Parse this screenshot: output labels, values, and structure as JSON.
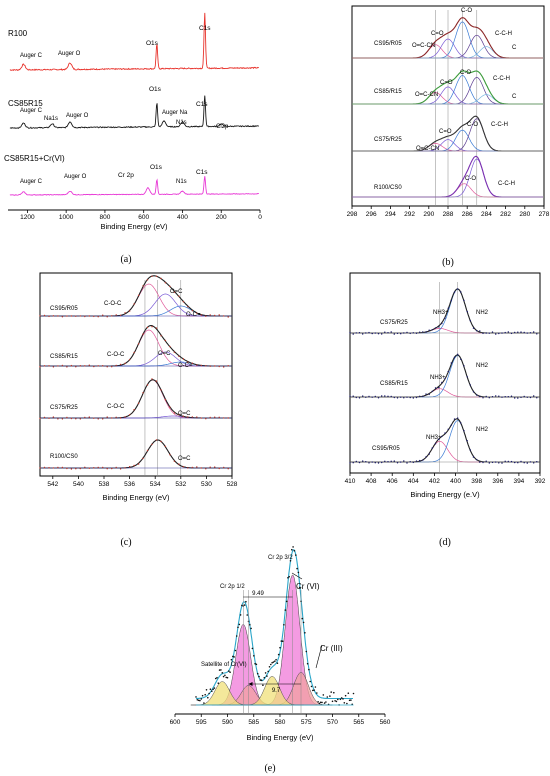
{
  "panels": {
    "a": {
      "label": "(a)",
      "xlabel": "Binding Energy  (eV)",
      "xlim": [
        1300,
        0
      ],
      "ticks": [
        1200,
        1000,
        800,
        600,
        400,
        200,
        0
      ],
      "spectra": [
        {
          "name": "R100",
          "color": "#e8342d",
          "labels": [
            "Auger C",
            "Auger O",
            "O1s",
            "C1s"
          ]
        },
        {
          "name": "CS85R15",
          "color": "#1a1a1a",
          "labels": [
            "Auger C",
            "Na1s",
            "Auger O",
            "O1s",
            "Auger Na",
            "N1s",
            "C1s",
            "Cl2p"
          ]
        },
        {
          "name": "CS85R15+Cr(VI)",
          "color": "#e83ad6",
          "labels": [
            "Auger C",
            "Auger O",
            "Cr 2p",
            "O1s",
            "N1s",
            "C1s"
          ]
        }
      ]
    },
    "b": {
      "label": "(b)",
      "xlim": [
        298,
        278
      ],
      "ticks": [
        298,
        296,
        294,
        292,
        290,
        288,
        286,
        284,
        282,
        280,
        278
      ],
      "spectra": [
        {
          "name": "CS95/R05",
          "labels": [
            "C-O",
            "C=O",
            "O=C-CN",
            "C-C-H",
            "C"
          ]
        },
        {
          "name": "CS85/R15",
          "labels": [
            "C-O",
            "C=O",
            "O=C-CN",
            "C-C-H",
            "C"
          ]
        },
        {
          "name": "CS75/R25",
          "labels": [
            "C-O",
            "C=O",
            "O=C-CN",
            "C-C-H"
          ]
        },
        {
          "name": "R100/CS0",
          "labels": [
            "C-O",
            "C-C-H"
          ]
        }
      ]
    },
    "c": {
      "label": "(c)",
      "xlabel": "Binding Energy (eV)",
      "xlim": [
        543,
        528
      ],
      "ticks": [
        542,
        540,
        538,
        536,
        534,
        532,
        530,
        528
      ],
      "spectra": [
        {
          "name": "CS95/R05",
          "labels": [
            "O=C",
            "C-O-C",
            "O-C="
          ]
        },
        {
          "name": "CS85/R15",
          "labels": [
            "C-O-C",
            "O=C",
            "O-C="
          ]
        },
        {
          "name": "CS75/R25",
          "labels": [
            "C-O-C",
            "O=C"
          ]
        },
        {
          "name": "R100/CS0",
          "labels": [
            "O=C"
          ]
        }
      ]
    },
    "d": {
      "label": "(d)",
      "xlabel": "Binding Energy (e.V)",
      "xlim": [
        410,
        392
      ],
      "ticks": [
        410,
        408,
        406,
        404,
        402,
        400,
        398,
        396,
        394,
        392
      ],
      "spectra": [
        {
          "name": "CS75/R25",
          "labels": [
            "NH3+",
            "NH2"
          ]
        },
        {
          "name": "CS85/R15",
          "labels": [
            "NH3+",
            "NH2"
          ]
        },
        {
          "name": "CS95/R05",
          "labels": [
            "NH3+",
            "NH2"
          ]
        }
      ]
    },
    "e": {
      "label": "(e)",
      "xlabel": "Binding Energy (eV)",
      "xlim": [
        600,
        560
      ],
      "ticks": [
        600,
        595,
        590,
        585,
        580,
        575,
        570,
        565,
        560
      ],
      "annotations": [
        "Cr 2p 1/2",
        "Cr 2p 3/2",
        "9.49",
        "Cr (VI)",
        "Cr (III)",
        "Satellite of Cr(VI)",
        "9.7"
      ]
    }
  },
  "chart_data": [
    {
      "type": "line",
      "panel": "a",
      "xlabel": "Binding Energy  (eV)",
      "xlim": [
        1300,
        0
      ],
      "series": [
        {
          "name": "R100",
          "peaks": [
            {
              "x": 1220,
              "h": 0.1
            },
            {
              "x": 980,
              "h": 0.12
            },
            {
              "x": 532,
              "h": 0.45
            },
            {
              "x": 285,
              "h": 1.0
            }
          ]
        },
        {
          "name": "CS85R15",
          "peaks": [
            {
              "x": 1220,
              "h": 0.1
            },
            {
              "x": 1072,
              "h": 0.08
            },
            {
              "x": 980,
              "h": 0.12
            },
            {
              "x": 532,
              "h": 0.5
            },
            {
              "x": 495,
              "h": 0.12
            },
            {
              "x": 400,
              "h": 0.1
            },
            {
              "x": 285,
              "h": 0.65
            },
            {
              "x": 200,
              "h": 0.05
            }
          ]
        },
        {
          "name": "CS85R15+Cr(VI)",
          "peaks": [
            {
              "x": 1220,
              "h": 0.1
            },
            {
              "x": 980,
              "h": 0.12
            },
            {
              "x": 578,
              "h": 0.22
            },
            {
              "x": 532,
              "h": 0.5
            },
            {
              "x": 400,
              "h": 0.1
            },
            {
              "x": 285,
              "h": 0.6
            }
          ]
        }
      ]
    },
    {
      "type": "line",
      "panel": "b",
      "xlim": [
        298,
        278
      ],
      "series": [
        {
          "name": "CS95/R05",
          "components": [
            {
              "x": 289.3,
              "h": 0.35
            },
            {
              "x": 288.0,
              "h": 0.5
            },
            {
              "x": 286.5,
              "h": 0.95
            },
            {
              "x": 285.0,
              "h": 0.6
            },
            {
              "x": 284.0,
              "h": 0.3
            }
          ]
        },
        {
          "name": "CS85/R15",
          "components": [
            {
              "x": 289.3,
              "h": 0.3
            },
            {
              "x": 288.0,
              "h": 0.45
            },
            {
              "x": 286.5,
              "h": 0.75
            },
            {
              "x": 285.0,
              "h": 0.7
            },
            {
              "x": 284.0,
              "h": 0.25
            }
          ]
        },
        {
          "name": "CS75/R25",
          "components": [
            {
              "x": 289.3,
              "h": 0.2
            },
            {
              "x": 288.0,
              "h": 0.3
            },
            {
              "x": 286.5,
              "h": 0.55
            },
            {
              "x": 285.0,
              "h": 0.85
            }
          ]
        },
        {
          "name": "R100/CS0",
          "components": [
            {
              "x": 286.3,
              "h": 0.35
            },
            {
              "x": 285.0,
              "h": 1.0
            }
          ]
        }
      ]
    },
    {
      "type": "line",
      "panel": "c",
      "xlim": [
        543,
        528
      ],
      "xlabel": "Binding Energy (eV)",
      "series": [
        {
          "name": "CS95/R05",
          "components": [
            {
              "x": 534.5,
              "h": 0.8
            },
            {
              "x": 533.2,
              "h": 0.55
            },
            {
              "x": 532.0,
              "h": 0.25
            }
          ]
        },
        {
          "name": "CS85/R15",
          "components": [
            {
              "x": 534.5,
              "h": 0.9
            },
            {
              "x": 533.2,
              "h": 0.35
            },
            {
              "x": 532.0,
              "h": 0.1
            }
          ]
        },
        {
          "name": "CS75/R25",
          "components": [
            {
              "x": 534.2,
              "h": 0.95
            },
            {
              "x": 532.6,
              "h": 0.05
            }
          ]
        },
        {
          "name": "R100/CS0",
          "components": [
            {
              "x": 533.8,
              "h": 0.7
            }
          ]
        }
      ]
    },
    {
      "type": "line",
      "panel": "d",
      "xlim": [
        410,
        392
      ],
      "xlabel": "Binding Energy (e.V)",
      "series": [
        {
          "name": "CS75/R25",
          "components": [
            {
              "x": 401.5,
              "h": 0.1
            },
            {
              "x": 399.8,
              "h": 0.95
            }
          ]
        },
        {
          "name": "CS85/R15",
          "components": [
            {
              "x": 401.5,
              "h": 0.18
            },
            {
              "x": 399.8,
              "h": 0.9
            }
          ]
        },
        {
          "name": "CS95/R05",
          "components": [
            {
              "x": 401.5,
              "h": 0.45
            },
            {
              "x": 399.8,
              "h": 0.9
            }
          ]
        }
      ]
    },
    {
      "type": "line",
      "panel": "e",
      "xlim": [
        600,
        560
      ],
      "xlabel": "Binding Energy (eV)",
      "series": [
        {
          "name": "Cr(VI)",
          "components": [
            {
              "x": 587.0,
              "h": 0.62
            },
            {
              "x": 577.6,
              "h": 1.0
            }
          ]
        },
        {
          "name": "Cr(III)",
          "components": [
            {
              "x": 586.0,
              "h": 0.15
            },
            {
              "x": 576.0,
              "h": 0.25
            }
          ]
        },
        {
          "name": "Satellite of Cr(VI)",
          "components": [
            {
              "x": 591.0,
              "h": 0.18
            },
            {
              "x": 581.5,
              "h": 0.22
            }
          ]
        }
      ],
      "markers": {
        "splitting_top": 9.49,
        "splitting_bottom": 9.7
      }
    }
  ]
}
